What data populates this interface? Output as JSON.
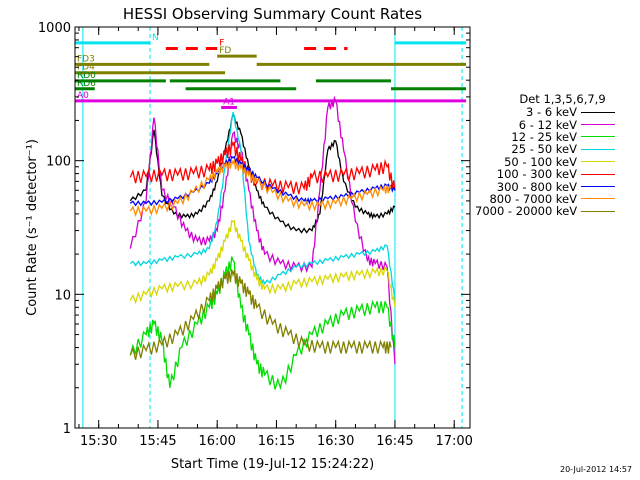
{
  "chart_data": {
    "type": "line",
    "title": "HESSI Observing Summary Count Rates",
    "xlabel": "Start Time (19-Jul-12 15:24:22)",
    "ylabel": "Count Rate (s⁻¹ detector⁻¹)",
    "y_scale": "log",
    "ylim": [
      1,
      1000
    ],
    "xlim_minutes_clock": [
      "15:24",
      "17:04"
    ],
    "x_ticks": [
      "15:30",
      "15:45",
      "16:00",
      "16:15",
      "16:30",
      "16:45",
      "17:00"
    ],
    "y_ticks": [
      "1",
      "10",
      "100",
      "1000"
    ],
    "legend_title": "Det 1,3,5,6,7,9",
    "legend_position": "right",
    "series": [
      {
        "name": "3 - 6 keV",
        "color": "#000000",
        "points": [
          [
            "15:38",
            50
          ],
          [
            "15:42",
            60
          ],
          [
            "15:44",
            170
          ],
          [
            "15:46",
            55
          ],
          [
            "15:49",
            40
          ],
          [
            "15:52",
            38
          ],
          [
            "15:55",
            40
          ],
          [
            "15:58",
            50
          ],
          [
            "16:00",
            70
          ],
          [
            "16:02",
            120
          ],
          [
            "16:04",
            220
          ],
          [
            "16:06",
            160
          ],
          [
            "16:08",
            90
          ],
          [
            "16:10",
            60
          ],
          [
            "16:12",
            45
          ],
          [
            "16:16",
            35
          ],
          [
            "16:20",
            30
          ],
          [
            "16:24",
            30
          ],
          [
            "16:26",
            40
          ],
          [
            "16:28",
            120
          ],
          [
            "16:30",
            140
          ],
          [
            "16:32",
            70
          ],
          [
            "16:35",
            45
          ],
          [
            "16:38",
            40
          ],
          [
            "16:40",
            38
          ],
          [
            "16:43",
            40
          ],
          [
            "16:45",
            45
          ]
        ]
      },
      {
        "name": "6 - 12 keV",
        "color": "#d000d0",
        "points": [
          [
            "15:38",
            22
          ],
          [
            "15:42",
            50
          ],
          [
            "15:44",
            210
          ],
          [
            "15:46",
            60
          ],
          [
            "15:49",
            45
          ],
          [
            "15:52",
            30
          ],
          [
            "15:55",
            25
          ],
          [
            "15:58",
            25
          ],
          [
            "16:00",
            30
          ],
          [
            "16:02",
            60
          ],
          [
            "16:04",
            160
          ],
          [
            "16:06",
            120
          ],
          [
            "16:08",
            60
          ],
          [
            "16:10",
            30
          ],
          [
            "16:12",
            20
          ],
          [
            "16:16",
            17
          ],
          [
            "16:20",
            16
          ],
          [
            "16:24",
            16
          ],
          [
            "16:26",
            60
          ],
          [
            "16:28",
            250
          ],
          [
            "16:30",
            280
          ],
          [
            "16:32",
            120
          ],
          [
            "16:35",
            35
          ],
          [
            "16:38",
            18
          ],
          [
            "16:40",
            17
          ],
          [
            "16:43",
            16
          ],
          [
            "16:45",
            3
          ]
        ]
      },
      {
        "name": "12 - 25 keV",
        "color": "#00dd00",
        "points": [
          [
            "15:38",
            3.5
          ],
          [
            "15:42",
            5
          ],
          [
            "15:44",
            6
          ],
          [
            "15:46",
            4.5
          ],
          [
            "15:48",
            2
          ],
          [
            "15:51",
            4
          ],
          [
            "15:55",
            6
          ],
          [
            "15:58",
            8
          ],
          [
            "16:00",
            10
          ],
          [
            "16:02",
            14
          ],
          [
            "16:04",
            18
          ],
          [
            "16:06",
            8
          ],
          [
            "16:08",
            5
          ],
          [
            "16:10",
            3
          ],
          [
            "16:12",
            2.5
          ],
          [
            "16:16",
            2
          ],
          [
            "16:20",
            3.5
          ],
          [
            "16:24",
            5
          ],
          [
            "16:28",
            6
          ],
          [
            "16:32",
            7
          ],
          [
            "16:36",
            7.5
          ],
          [
            "16:40",
            8
          ],
          [
            "16:43",
            8
          ],
          [
            "16:45",
            4
          ]
        ]
      },
      {
        "name": "25 - 50 keV",
        "color": "#00d6e0",
        "points": [
          [
            "15:38",
            17
          ],
          [
            "15:42",
            17
          ],
          [
            "15:46",
            18
          ],
          [
            "15:50",
            19
          ],
          [
            "15:55",
            20
          ],
          [
            "15:58",
            22
          ],
          [
            "16:00",
            35
          ],
          [
            "16:02",
            90
          ],
          [
            "16:04",
            230
          ],
          [
            "16:06",
            120
          ],
          [
            "16:08",
            25
          ],
          [
            "16:10",
            14
          ],
          [
            "16:12",
            12
          ],
          [
            "16:16",
            14
          ],
          [
            "16:20",
            16
          ],
          [
            "16:24",
            17
          ],
          [
            "16:28",
            18
          ],
          [
            "16:32",
            19
          ],
          [
            "16:36",
            20
          ],
          [
            "16:40",
            21
          ],
          [
            "16:43",
            23
          ],
          [
            "16:45",
            9
          ]
        ]
      },
      {
        "name": "50 - 100 keV",
        "color": "#d8d800",
        "points": [
          [
            "15:38",
            9
          ],
          [
            "15:42",
            10
          ],
          [
            "15:46",
            11
          ],
          [
            "15:50",
            11.5
          ],
          [
            "15:55",
            12
          ],
          [
            "15:58",
            14
          ],
          [
            "16:00",
            18
          ],
          [
            "16:02",
            25
          ],
          [
            "16:04",
            35
          ],
          [
            "16:06",
            25
          ],
          [
            "16:08",
            18
          ],
          [
            "16:10",
            13
          ],
          [
            "16:12",
            11
          ],
          [
            "16:16",
            11
          ],
          [
            "16:20",
            12
          ],
          [
            "16:24",
            12.5
          ],
          [
            "16:28",
            13
          ],
          [
            "16:32",
            13.5
          ],
          [
            "16:36",
            14
          ],
          [
            "16:40",
            14.5
          ],
          [
            "16:43",
            15
          ],
          [
            "16:45",
            8
          ]
        ]
      },
      {
        "name": "100 - 300 keV",
        "color": "#ff0000",
        "points": [
          [
            "15:38",
            75
          ],
          [
            "15:42",
            76
          ],
          [
            "15:46",
            78
          ],
          [
            "15:50",
            78
          ],
          [
            "15:54",
            80
          ],
          [
            "15:58",
            85
          ],
          [
            "16:00",
            95
          ],
          [
            "16:02",
            110
          ],
          [
            "16:04",
            130
          ],
          [
            "16:06",
            100
          ],
          [
            "16:08",
            80
          ],
          [
            "16:10",
            68
          ],
          [
            "16:14",
            65
          ],
          [
            "16:18",
            63
          ],
          [
            "16:22",
            62
          ],
          [
            "16:24",
            75
          ],
          [
            "16:28",
            76
          ],
          [
            "16:32",
            78
          ],
          [
            "16:36",
            80
          ],
          [
            "16:40",
            85
          ],
          [
            "16:43",
            90
          ],
          [
            "16:45",
            60
          ]
        ]
      },
      {
        "name": "300 - 800 keV",
        "color": "#0000ff",
        "points": [
          [
            "15:38",
            48
          ],
          [
            "15:42",
            48
          ],
          [
            "15:46",
            49
          ],
          [
            "15:50",
            52
          ],
          [
            "15:54",
            58
          ],
          [
            "15:58",
            68
          ],
          [
            "16:00",
            80
          ],
          [
            "16:02",
            95
          ],
          [
            "16:04",
            105
          ],
          [
            "16:06",
            95
          ],
          [
            "16:08",
            85
          ],
          [
            "16:10",
            75
          ],
          [
            "16:14",
            62
          ],
          [
            "16:18",
            55
          ],
          [
            "16:22",
            50
          ],
          [
            "16:24",
            50
          ],
          [
            "16:28",
            52
          ],
          [
            "16:32",
            54
          ],
          [
            "16:36",
            58
          ],
          [
            "16:40",
            62
          ],
          [
            "16:43",
            65
          ],
          [
            "16:45",
            60
          ]
        ]
      },
      {
        "name": "800 - 7000 keV",
        "color": "#ff8c00",
        "points": [
          [
            "15:38",
            42
          ],
          [
            "15:42",
            42
          ],
          [
            "15:46",
            44
          ],
          [
            "15:50",
            48
          ],
          [
            "15:54",
            58
          ],
          [
            "15:58",
            72
          ],
          [
            "16:00",
            82
          ],
          [
            "16:02",
            90
          ],
          [
            "16:04",
            95
          ],
          [
            "16:06",
            88
          ],
          [
            "16:08",
            78
          ],
          [
            "16:10",
            70
          ],
          [
            "16:14",
            58
          ],
          [
            "16:18",
            50
          ],
          [
            "16:22",
            46
          ],
          [
            "16:26",
            46
          ],
          [
            "16:30",
            48
          ],
          [
            "16:34",
            52
          ],
          [
            "16:38",
            56
          ],
          [
            "16:42",
            60
          ],
          [
            "16:44",
            62
          ]
        ]
      },
      {
        "name": "7000 - 20000 keV",
        "color": "#808000",
        "points": [
          [
            "15:38",
            3.5
          ],
          [
            "15:42",
            3.8
          ],
          [
            "15:46",
            4.2
          ],
          [
            "15:50",
            5
          ],
          [
            "15:54",
            6.5
          ],
          [
            "15:58",
            9
          ],
          [
            "16:00",
            11
          ],
          [
            "16:02",
            13
          ],
          [
            "16:04",
            14
          ],
          [
            "16:06",
            12
          ],
          [
            "16:08",
            10
          ],
          [
            "16:10",
            8
          ],
          [
            "16:14",
            6
          ],
          [
            "16:18",
            5
          ],
          [
            "16:22",
            4.2
          ],
          [
            "16:26",
            4
          ],
          [
            "16:30",
            4
          ],
          [
            "16:34",
            4
          ],
          [
            "16:38",
            4
          ],
          [
            "16:42",
            4
          ],
          [
            "16:44",
            4
          ]
        ]
      }
    ],
    "flag_bars": [
      {
        "label": "N",
        "color": "#00e5ee",
        "level": 760,
        "segments": [
          [
            "15:24",
            "15:43"
          ],
          [
            "16:45",
            "17:03"
          ]
        ]
      },
      {
        "label": "F",
        "color": "#ff0000",
        "level": 690,
        "style": "dashed",
        "segments": [
          [
            "15:47",
            "16:00"
          ],
          [
            "16:22",
            "16:33"
          ]
        ]
      },
      {
        "label": "FD",
        "color": "#808000",
        "level": 605,
        "segments": [
          [
            "16:00",
            "16:10"
          ]
        ]
      },
      {
        "label": "FD3",
        "color": "#808000",
        "level": 525,
        "segments": [
          [
            "15:24",
            "15:58"
          ],
          [
            "16:10",
            "17:03"
          ]
        ]
      },
      {
        "label": "FD4",
        "color": "#808000",
        "level": 455,
        "segments": [
          [
            "15:24",
            "16:02"
          ]
        ]
      },
      {
        "label": "RD0",
        "color": "#008000",
        "level": 395,
        "segments": [
          [
            "15:24",
            "15:47"
          ],
          [
            "15:48",
            "16:16"
          ],
          [
            "16:25",
            "16:44"
          ]
        ]
      },
      {
        "label": "RD6",
        "color": "#008000",
        "level": 345,
        "segments": [
          [
            "15:24",
            "15:29"
          ],
          [
            "15:52",
            "16:20"
          ],
          [
            "16:44",
            "17:03"
          ]
        ]
      },
      {
        "label": "A0",
        "color": "#e000e0",
        "level": 280,
        "segments": [
          [
            "15:24",
            "17:03"
          ]
        ]
      },
      {
        "label": "A1",
        "color": "#e000e0",
        "level": 250,
        "segments": [
          [
            "16:01",
            "16:05"
          ]
        ]
      }
    ],
    "vertical_markers": [
      {
        "time": "15:26",
        "color": "#00e5ee",
        "style": "solid"
      },
      {
        "time": "15:43",
        "color": "#00e5ee",
        "style": "dashed"
      },
      {
        "time": "16:45",
        "color": "#00e5ee",
        "style": "solid"
      },
      {
        "time": "17:02",
        "color": "#00e5ee",
        "style": "dashed"
      }
    ]
  },
  "timestamp": "20-Jul-2012 14:57"
}
